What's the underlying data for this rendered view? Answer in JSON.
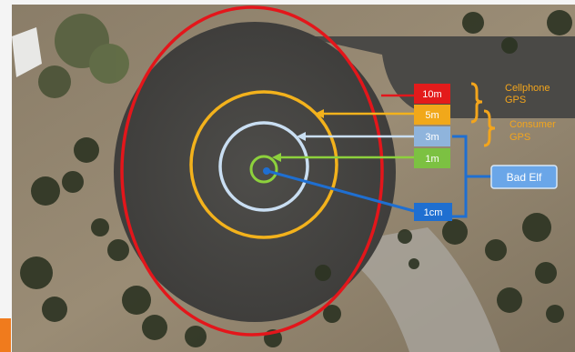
{
  "badges": {
    "ten_m": "10m",
    "five_m": "5m",
    "three_m": "3m",
    "one_m": "1m",
    "one_cm": "1cm"
  },
  "annotations": {
    "cellphone_line1": "Cellphone",
    "cellphone_line2": "GPS",
    "consumer_line1": "Consumer",
    "consumer_line2": "GPS",
    "bad_elf": "Bad Elf"
  },
  "colors": {
    "ring_10m": "#e3161b",
    "ring_5m": "#f3b21c",
    "ring_3m": "#c9def2",
    "ring_1m": "#8dd13c",
    "badge_10m": "#e31b1b",
    "badge_5m": "#f1a81a",
    "badge_3m": "#8fb4dc",
    "badge_1m": "#7cc142",
    "badge_1cm": "#1f6fd1",
    "bracket_gps": "#f3a51c",
    "bad_elf_box": "#6aa6e8"
  }
}
